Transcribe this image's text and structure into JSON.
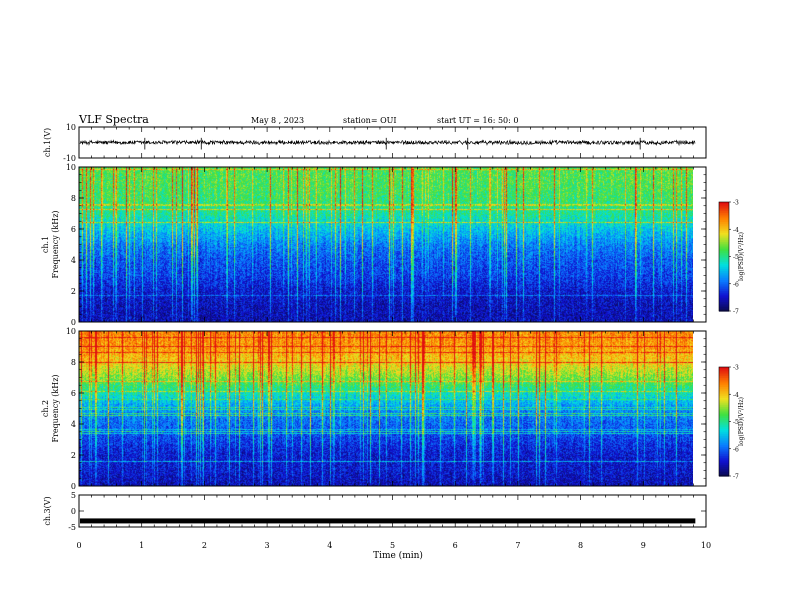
{
  "header": {
    "title": "VLF Spectra",
    "date": "May 8 , 2023",
    "station": "station= OUI",
    "start": "start UT = 16: 50: 0"
  },
  "colors": {
    "trace": "#000000",
    "colormap": [
      "#0a0a4a",
      "#1010d0",
      "#0a7cff",
      "#00e0e0",
      "#40e040",
      "#f0e020",
      "#ff8000",
      "#e01010",
      "#ffffff"
    ]
  },
  "chart_data": [
    {
      "type": "line",
      "id": "ch1-waveform",
      "ylabel": "ch.1(V)",
      "ylim": [
        -10,
        10
      ],
      "yticks": [
        "10",
        "-10"
      ],
      "xlim": [
        0,
        10
      ],
      "description_values": {
        "mean": 0,
        "amplitude_approx": 1.5,
        "data_end_min": 9.83
      }
    },
    {
      "type": "heatmap",
      "id": "ch1-spectrogram",
      "ylabel": "ch.1 Frequency (kHz)",
      "ylim": [
        0,
        10
      ],
      "yticks": [
        "0",
        "2",
        "4",
        "6",
        "8",
        "10"
      ],
      "xlim": [
        0,
        10
      ],
      "data_end_min": 9.83,
      "colorbar": {
        "label": "log(PSD)(V²/Hz)",
        "range": [
          -7,
          -3
        ],
        "ticks": [
          "-3",
          "-4",
          "-5",
          "-6",
          "-7"
        ]
      },
      "profile_log_psd_by_freq_khz": [
        [
          0,
          -6.6
        ],
        [
          1,
          -6.6
        ],
        [
          2,
          -6.5
        ],
        [
          3,
          -6.3
        ],
        [
          4,
          -6.2
        ],
        [
          5,
          -6.0
        ],
        [
          6,
          -5.6
        ],
        [
          7,
          -5.2
        ],
        [
          8,
          -5.0
        ],
        [
          9,
          -4.9
        ],
        [
          10,
          -4.9
        ]
      ]
    },
    {
      "type": "heatmap",
      "id": "ch2-spectrogram",
      "ylabel": "ch.2 Frequency (kHz)",
      "ylim": [
        0,
        10
      ],
      "yticks": [
        "0",
        "2",
        "4",
        "6",
        "8",
        "10"
      ],
      "xlim": [
        0,
        10
      ],
      "data_end_min": 9.83,
      "colorbar": {
        "label": "log(PSD)(V²/Hz)",
        "range": [
          -7,
          -3
        ],
        "ticks": [
          "-3",
          "-4",
          "-5",
          "-6",
          "-7"
        ]
      },
      "profile_log_psd_by_freq_khz": [
        [
          0,
          -6.6
        ],
        [
          1,
          -6.5
        ],
        [
          2,
          -6.5
        ],
        [
          3,
          -6.3
        ],
        [
          4,
          -6.1
        ],
        [
          5,
          -5.9
        ],
        [
          6,
          -5.3
        ],
        [
          7,
          -4.7
        ],
        [
          8,
          -4.2
        ],
        [
          9,
          -3.9
        ],
        [
          10,
          -3.8
        ]
      ]
    },
    {
      "type": "line",
      "id": "ch3-waveform",
      "ylabel": "ch.3(V)",
      "ylim": [
        -5,
        5
      ],
      "yticks": [
        "5",
        "0",
        "-5"
      ],
      "xlim": [
        0,
        10
      ],
      "xlabel": "Time (min)",
      "xticks": [
        "0",
        "1",
        "2",
        "3",
        "4",
        "5",
        "6",
        "7",
        "8",
        "9",
        "10"
      ],
      "description_values": {
        "level": -3.1,
        "data_end_min": 9.83
      }
    }
  ]
}
